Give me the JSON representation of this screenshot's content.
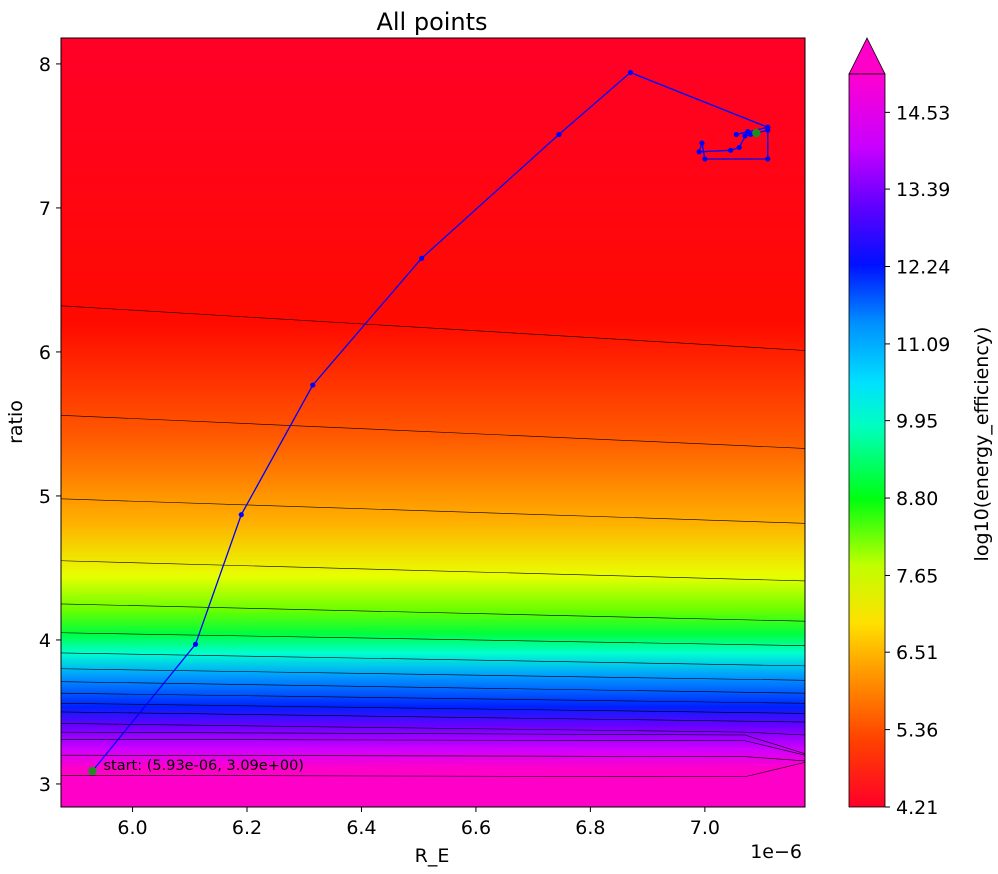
{
  "chart_data": {
    "type": "contour",
    "title": "All points",
    "xlabel": "R_E",
    "ylabel": "ratio",
    "x_offset_label": "1e−6",
    "xlim": [
      5.875,
      7.175
    ],
    "ylim": [
      2.84,
      8.18
    ],
    "x_scale_exponent": -6,
    "x_ticks": [
      6.0,
      6.2,
      6.4,
      6.6,
      6.8,
      7.0
    ],
    "x_tick_labels": [
      "6.0",
      "6.2",
      "6.4",
      "6.6",
      "6.8",
      "7.0"
    ],
    "y_ticks": [
      3,
      4,
      5,
      6,
      7,
      8
    ],
    "y_tick_labels": [
      "3",
      "4",
      "5",
      "6",
      "7",
      "8"
    ],
    "colorbar": {
      "label": "log10(energy_efficiency)",
      "min": 4.21,
      "max": 15.1,
      "extend": "max",
      "colormap": "gist_rainbow_r",
      "ticks": [
        4.21,
        5.36,
        6.51,
        7.65,
        8.8,
        9.95,
        11.09,
        12.24,
        13.39,
        14.53
      ],
      "tick_labels": [
        "4.21",
        "5.36",
        "6.51",
        "7.65",
        "8.80",
        "9.95",
        "11.09",
        "12.24",
        "13.39",
        "14.53"
      ]
    },
    "contour_lines": [
      {
        "level": 4.6,
        "left_y": 6.32,
        "right_y": 6.01
      },
      {
        "level": 5.0,
        "left_y": 5.56,
        "right_y": 5.33
      },
      {
        "level": 5.5,
        "left_y": 4.98,
        "right_y": 4.81
      },
      {
        "level": 6.0,
        "left_y": 4.55,
        "right_y": 4.41
      },
      {
        "level": 6.5,
        "left_y": 4.25,
        "right_y": 4.13
      },
      {
        "level": 7.0,
        "left_y": 4.05,
        "right_y": 3.96
      },
      {
        "level": 7.5,
        "left_y": 3.91,
        "right_y": 3.82
      },
      {
        "level": 8.0,
        "left_y": 3.8,
        "right_y": 3.72
      },
      {
        "level": 8.5,
        "left_y": 3.71,
        "right_y": 3.63
      },
      {
        "level": 9.0,
        "left_y": 3.63,
        "right_y": 3.56
      },
      {
        "level": 9.5,
        "left_y": 3.56,
        "right_y": 3.49
      },
      {
        "level": 10.0,
        "left_y": 3.5,
        "right_y": 3.43
      },
      {
        "level": 11.0,
        "left_y": 3.42,
        "right_y": 3.34,
        "kink": [
          7.07,
          3.36
        ]
      },
      {
        "level": 12.0,
        "left_y": 3.36,
        "right_y": 3.21,
        "kink": [
          7.07,
          3.34
        ]
      },
      {
        "level": 13.0,
        "left_y": 3.31,
        "right_y": 3.2,
        "kink": [
          7.07,
          3.3
        ]
      },
      {
        "level": 14.0,
        "left_y": 3.2,
        "right_y": 3.16,
        "kink": [
          7.07,
          3.19
        ]
      },
      {
        "level": 15.0,
        "left_y": 3.06,
        "right_y": 3.15,
        "kink": [
          7.07,
          3.05
        ]
      }
    ],
    "series": [
      {
        "type": "line",
        "color": "#0000ff",
        "points": [
          [
            5.93,
            3.09
          ],
          [
            6.11,
            3.97
          ],
          [
            6.19,
            4.87
          ],
          [
            6.315,
            5.77
          ],
          [
            6.505,
            6.65
          ],
          [
            6.745,
            7.51
          ],
          [
            6.87,
            7.94
          ],
          [
            7.11,
            7.56
          ],
          [
            7.055,
            7.51
          ],
          [
            7.075,
            7.53
          ],
          [
            7.06,
            7.42
          ],
          [
            7.045,
            7.4
          ],
          [
            6.99,
            7.39
          ],
          [
            6.995,
            7.45
          ],
          [
            7.0,
            7.34
          ],
          [
            7.11,
            7.34
          ],
          [
            7.11,
            7.54
          ],
          [
            7.08,
            7.51
          ],
          [
            7.09,
            7.52
          ],
          [
            7.07,
            7.5
          ]
        ]
      }
    ],
    "markers": [
      {
        "x": 5.93,
        "y": 3.09,
        "color": "#1e8c1e"
      },
      {
        "x": 7.09,
        "y": 7.52,
        "color": "#1e8c1e"
      }
    ],
    "annotations": [
      {
        "text": "start: (5.93e-06, 3.09e+00)",
        "x": 5.93,
        "y": 3.09
      }
    ]
  }
}
